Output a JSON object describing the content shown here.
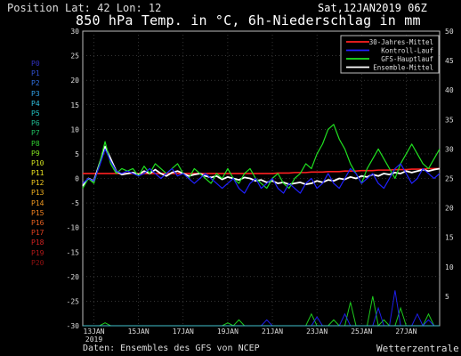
{
  "header": {
    "position_label": "Position",
    "lat_lon": "Lat: 42 Lon: 12",
    "date": "Sat,12JAN2019 06Z",
    "title": "850 hPa Temp. in °C, 6h-Niederschlag in mm"
  },
  "footer": {
    "source": "Daten: Ensembles des GFS von NCEP",
    "brand": "Wetterzentrale"
  },
  "members": [
    {
      "label": "P0",
      "color": "#3030c0"
    },
    {
      "label": "P1",
      "color": "#3050d0"
    },
    {
      "label": "P2",
      "color": "#3070e0"
    },
    {
      "label": "P3",
      "color": "#30a0e8"
    },
    {
      "label": "P4",
      "color": "#30c0e0"
    },
    {
      "label": "P5",
      "color": "#20c0c0"
    },
    {
      "label": "P6",
      "color": "#20b890"
    },
    {
      "label": "P7",
      "color": "#20c060"
    },
    {
      "label": "P8",
      "color": "#30d030"
    },
    {
      "label": "P9",
      "color": "#80e020"
    },
    {
      "label": "P10",
      "color": "#d0e020"
    },
    {
      "label": "P11",
      "color": "#e8e020"
    },
    {
      "label": "P12",
      "color": "#f0c820"
    },
    {
      "label": "P13",
      "color": "#f0b020"
    },
    {
      "label": "P14",
      "color": "#f09820"
    },
    {
      "label": "P15",
      "color": "#f08020"
    },
    {
      "label": "P16",
      "color": "#e86020"
    },
    {
      "label": "P17",
      "color": "#e04020"
    },
    {
      "label": "P18",
      "color": "#d02020"
    },
    {
      "label": "P19",
      "color": "#b01818"
    },
    {
      "label": "P20",
      "color": "#901010"
    }
  ],
  "chart_data": {
    "type": "line",
    "x_ticks": [
      "13JAN",
      "15JAN",
      "17JAN",
      "19JAN",
      "21JAN",
      "23JAN",
      "25JAN",
      "27JAN"
    ],
    "x_year": "2019",
    "x_hours": [
      0,
      6,
      12,
      18,
      24,
      30,
      36,
      42,
      48,
      54,
      60,
      66,
      72,
      78,
      84,
      90,
      96,
      102,
      108,
      114,
      120,
      126,
      132,
      138,
      144,
      150,
      156,
      162,
      168,
      174,
      180,
      186,
      192,
      198,
      204,
      210,
      216,
      222,
      228,
      234,
      240,
      246,
      252,
      258,
      264,
      270,
      276,
      282,
      288,
      294,
      300,
      306,
      312,
      318,
      324,
      330,
      336,
      342,
      348,
      354,
      360,
      366,
      372,
      378,
      384
    ],
    "ylim_left": [
      -30,
      30
    ],
    "yticks_left": [
      30,
      25,
      20,
      15,
      10,
      5,
      0,
      -5,
      -10,
      -15,
      -20,
      -25,
      -30
    ],
    "ylim_right": [
      0,
      50
    ],
    "yticks_right": [
      50,
      45,
      40,
      35,
      30,
      25,
      20,
      15,
      10,
      5
    ],
    "grid": true,
    "legend_position": "top-right",
    "legend": [
      {
        "name": "30-Jahres-Mittel",
        "color": "#ff2020"
      },
      {
        "name": "Kontroll-Lauf",
        "color": "#2020ff"
      },
      {
        "name": "GFS-Hauptlauf",
        "color": "#20e020"
      },
      {
        "name": "Ensemble-Mittel",
        "color": "#ffffff"
      }
    ],
    "series": [
      {
        "name": "30-Jahres-Mittel",
        "color": "#ff2020",
        "width": 1.6,
        "values": [
          1,
          1,
          1,
          1,
          1,
          1,
          1,
          1,
          1,
          1,
          1,
          1,
          1,
          1,
          1,
          1,
          1,
          1,
          1,
          1,
          1,
          1,
          1,
          1,
          1,
          1,
          1,
          1,
          1,
          1,
          1,
          1,
          1,
          1,
          1,
          1.1,
          1.1,
          1.1,
          1.2,
          1.2,
          1.2,
          1.3,
          1.3,
          1.3,
          1.4,
          1.4,
          1.4,
          1.5,
          1.5,
          1.5,
          1.6,
          1.6,
          1.6,
          1.7,
          1.7,
          1.7,
          1.8,
          1.8,
          1.8,
          1.9,
          1.9,
          1.9,
          2,
          2,
          2
        ]
      },
      {
        "name": "Ensemble-Mittel",
        "color": "#ffffff",
        "width": 1.8,
        "values": [
          -1.5,
          0,
          -0.5,
          3,
          6.5,
          4,
          1.5,
          0.8,
          1,
          1.2,
          0.8,
          1.5,
          1,
          1.8,
          1,
          0.5,
          1.2,
          1.5,
          1,
          0.5,
          0.8,
          1,
          0.5,
          0.2,
          0.5,
          -0.2,
          0.3,
          0,
          -0.3,
          0.2,
          0,
          -0.5,
          -0.3,
          -0.8,
          -0.5,
          -1,
          -0.8,
          -1.2,
          -1,
          -0.8,
          -1.2,
          -1,
          -0.5,
          -0.8,
          -0.3,
          -0.5,
          0,
          -0.2,
          0.3,
          0,
          0.5,
          0.3,
          0.8,
          0.5,
          1,
          0.8,
          1.2,
          1,
          1.5,
          1.2,
          1.5,
          1.8,
          1.5,
          1.8,
          2
        ]
      },
      {
        "name": "GFS-Hauptlauf",
        "color": "#20e020",
        "width": 1.2,
        "values": [
          -2,
          0,
          -1,
          3,
          7.5,
          3,
          1,
          2,
          1.5,
          2,
          0.5,
          2.5,
          1,
          3,
          2,
          1,
          2,
          3,
          1,
          0,
          2,
          1,
          0,
          -1,
          1,
          0,
          2,
          0,
          -1,
          1,
          2,
          0,
          -1,
          -2,
          0,
          1,
          -1,
          -2,
          0,
          1,
          3,
          2,
          5,
          7,
          10,
          11,
          8,
          6,
          3,
          1,
          -1,
          2,
          4,
          6,
          4,
          2,
          0,
          3,
          5,
          7,
          5,
          3,
          2,
          4,
          6
        ]
      },
      {
        "name": "Kontroll-Lauf",
        "color": "#2020ff",
        "width": 1.2,
        "values": [
          -1,
          0,
          -0.5,
          2.5,
          6,
          3.5,
          1.5,
          1,
          1.5,
          1,
          0.5,
          1,
          2,
          1,
          0,
          1,
          2,
          0.5,
          1,
          0,
          -1,
          0,
          1,
          0,
          -1,
          -2,
          -1,
          0,
          -2,
          -3,
          -1,
          0,
          -2,
          -1,
          0,
          -2,
          -3,
          -1,
          -2,
          -3,
          -1,
          0,
          -2,
          -1,
          1,
          -1,
          -2,
          0,
          2,
          1,
          -1,
          0,
          1,
          -1,
          -2,
          0,
          2,
          3,
          1,
          -1,
          0,
          2,
          1,
          0,
          1
        ]
      }
    ],
    "precip_series": [
      {
        "name": "GFS-Hauptlauf",
        "color": "#20e020",
        "values": [
          0,
          0,
          0,
          0,
          0.5,
          0,
          0,
          0,
          0,
          0,
          0,
          0,
          0,
          0,
          0,
          0,
          0,
          0,
          0,
          0,
          0,
          0,
          0,
          0,
          0,
          0,
          0.5,
          0,
          1,
          0,
          0,
          0,
          0,
          0,
          0,
          0,
          0,
          0,
          0,
          0,
          0,
          2,
          0,
          0,
          0,
          1,
          0,
          0,
          4,
          0,
          0,
          0,
          5,
          0,
          1,
          0,
          0,
          3,
          0,
          0,
          0,
          0,
          2,
          0,
          0
        ]
      },
      {
        "name": "Kontroll-Lauf",
        "color": "#2020ff",
        "values": [
          0,
          0,
          0,
          0,
          0,
          0,
          0,
          0,
          0,
          0,
          0,
          0,
          0,
          0,
          0,
          0,
          0,
          0,
          0,
          0,
          0,
          0,
          0,
          0,
          0,
          0,
          0,
          0,
          0,
          0,
          0,
          0,
          0,
          1,
          0,
          0,
          0,
          0,
          0,
          0,
          0,
          0,
          1.5,
          0,
          0,
          0,
          0,
          2,
          0,
          0,
          0,
          0,
          0,
          3,
          0,
          0,
          6,
          0,
          0,
          0,
          2,
          0,
          1,
          0,
          0
        ]
      },
      {
        "name": "",
        "color": "#e8e020",
        "values": [
          0,
          0,
          0,
          0,
          0,
          0,
          0,
          0,
          0,
          0,
          0,
          0,
          0,
          0,
          0,
          0,
          0,
          0,
          0,
          0,
          0,
          0,
          0,
          0,
          0,
          0,
          0,
          0,
          0,
          0,
          0,
          0,
          0,
          0,
          0,
          0,
          0,
          0,
          0,
          0,
          0,
          0,
          0,
          0,
          0,
          0,
          0,
          0,
          0,
          0,
          0,
          0,
          0,
          0,
          0,
          0,
          0,
          0,
          0,
          0,
          0,
          0,
          0,
          0,
          0
        ]
      },
      {
        "name": "",
        "color": "#30d030",
        "values": [
          0,
          0,
          0,
          0,
          0,
          0,
          0,
          0,
          0,
          0,
          0,
          0,
          0,
          0,
          0,
          0,
          0,
          0,
          0,
          0,
          0,
          0,
          0,
          0,
          0,
          0,
          0,
          0,
          0,
          0,
          0,
          0,
          0,
          0,
          0,
          0,
          0,
          0,
          0,
          0,
          0,
          0,
          0,
          0,
          0,
          0,
          0,
          0,
          0,
          0,
          0,
          0,
          0,
          0,
          0,
          0,
          0,
          0,
          0,
          0,
          0,
          0,
          0,
          0,
          0
        ]
      },
      {
        "name": "",
        "color": "#f0b020",
        "values": [
          0,
          0,
          0,
          0,
          0,
          0,
          0,
          0,
          0,
          0,
          0,
          0,
          0,
          0,
          0,
          0,
          0,
          0,
          0,
          0,
          0,
          0,
          0,
          0,
          0,
          0,
          0,
          0,
          0,
          0,
          0,
          0,
          0,
          0,
          0,
          0,
          0,
          0,
          0,
          0,
          0,
          0,
          0,
          0,
          0,
          0,
          0,
          0,
          0,
          0,
          0,
          0,
          0,
          0,
          0,
          0,
          0,
          0,
          0,
          0,
          0,
          0,
          0,
          0,
          0
        ]
      },
      {
        "name": "",
        "color": "#30c0e0",
        "values": [
          0,
          0,
          0,
          0,
          0,
          0,
          0,
          0,
          0,
          0,
          0,
          0,
          0,
          0,
          0,
          0,
          0,
          0,
          0,
          0,
          0,
          0,
          0,
          0,
          0,
          0,
          0,
          0,
          0,
          0,
          0,
          0,
          0,
          0,
          0,
          0,
          0,
          0,
          0,
          0,
          0,
          0,
          0,
          0,
          0,
          0,
          0,
          0,
          0,
          0,
          0,
          0,
          0,
          0,
          0,
          0,
          0,
          0,
          0,
          0,
          0,
          0,
          0,
          0,
          0
        ]
      }
    ]
  }
}
